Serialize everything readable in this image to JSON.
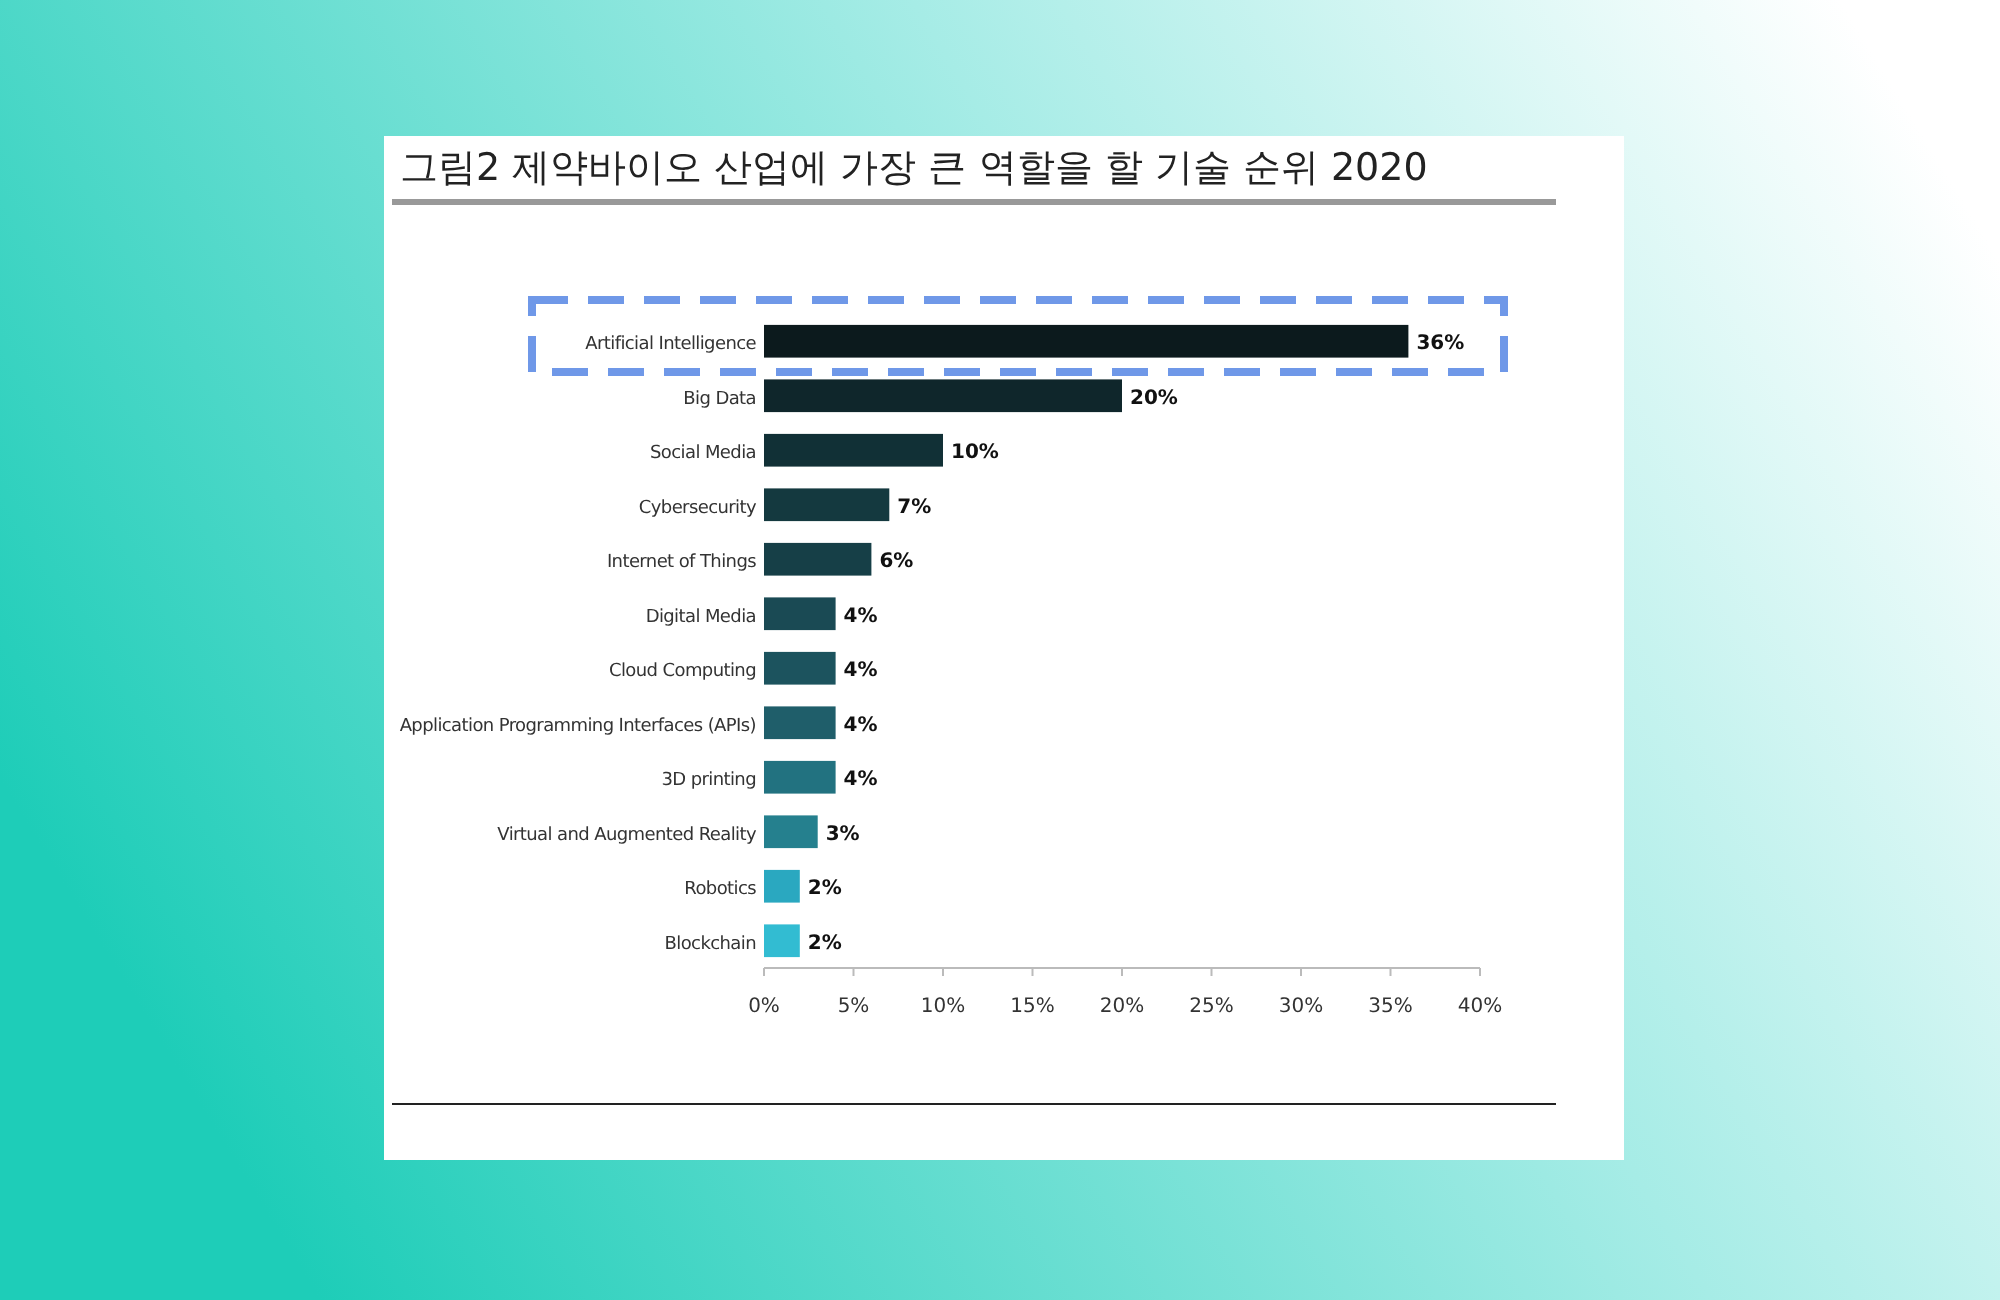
{
  "chart_data": {
    "type": "bar",
    "orientation": "horizontal",
    "title": "그림2 제약바이오 산업에 가장 큰 역할을 할 기술 순위 2020",
    "categories": [
      "Artificial Intelligence",
      "Big Data",
      "Social Media",
      "Cybersecurity",
      "Internet of Things",
      "Digital Media",
      "Cloud Computing",
      "Application Programming Interfaces (APIs)",
      "3D printing",
      "Virtual and Augmented Reality",
      "Robotics",
      "Blockchain"
    ],
    "values": [
      36,
      20,
      10,
      7,
      6,
      4,
      4,
      4,
      4,
      3,
      2,
      2
    ],
    "value_labels": [
      "36%",
      "20%",
      "10%",
      "7%",
      "6%",
      "4%",
      "4%",
      "4%",
      "4%",
      "3%",
      "2%",
      "2%"
    ],
    "colors": [
      "#0c1a1d",
      "#0f262b",
      "#113036",
      "#14393f",
      "#163f47",
      "#1a4a54",
      "#1c535e",
      "#1f5e6a",
      "#227280",
      "#25808e",
      "#2aa8c0",
      "#32bcd2"
    ],
    "xlim": [
      0,
      40
    ],
    "xticks": [
      {
        "value": 0,
        "label": "0%"
      },
      {
        "value": 5,
        "label": "5%"
      },
      {
        "value": 10,
        "label": "10%"
      },
      {
        "value": 15,
        "label": "15%"
      },
      {
        "value": 20,
        "label": "20%"
      },
      {
        "value": 25,
        "label": "25%"
      },
      {
        "value": 30,
        "label": "30%"
      },
      {
        "value": 35,
        "label": "35%"
      },
      {
        "value": 40,
        "label": "40%"
      }
    ],
    "grid": false
  }
}
